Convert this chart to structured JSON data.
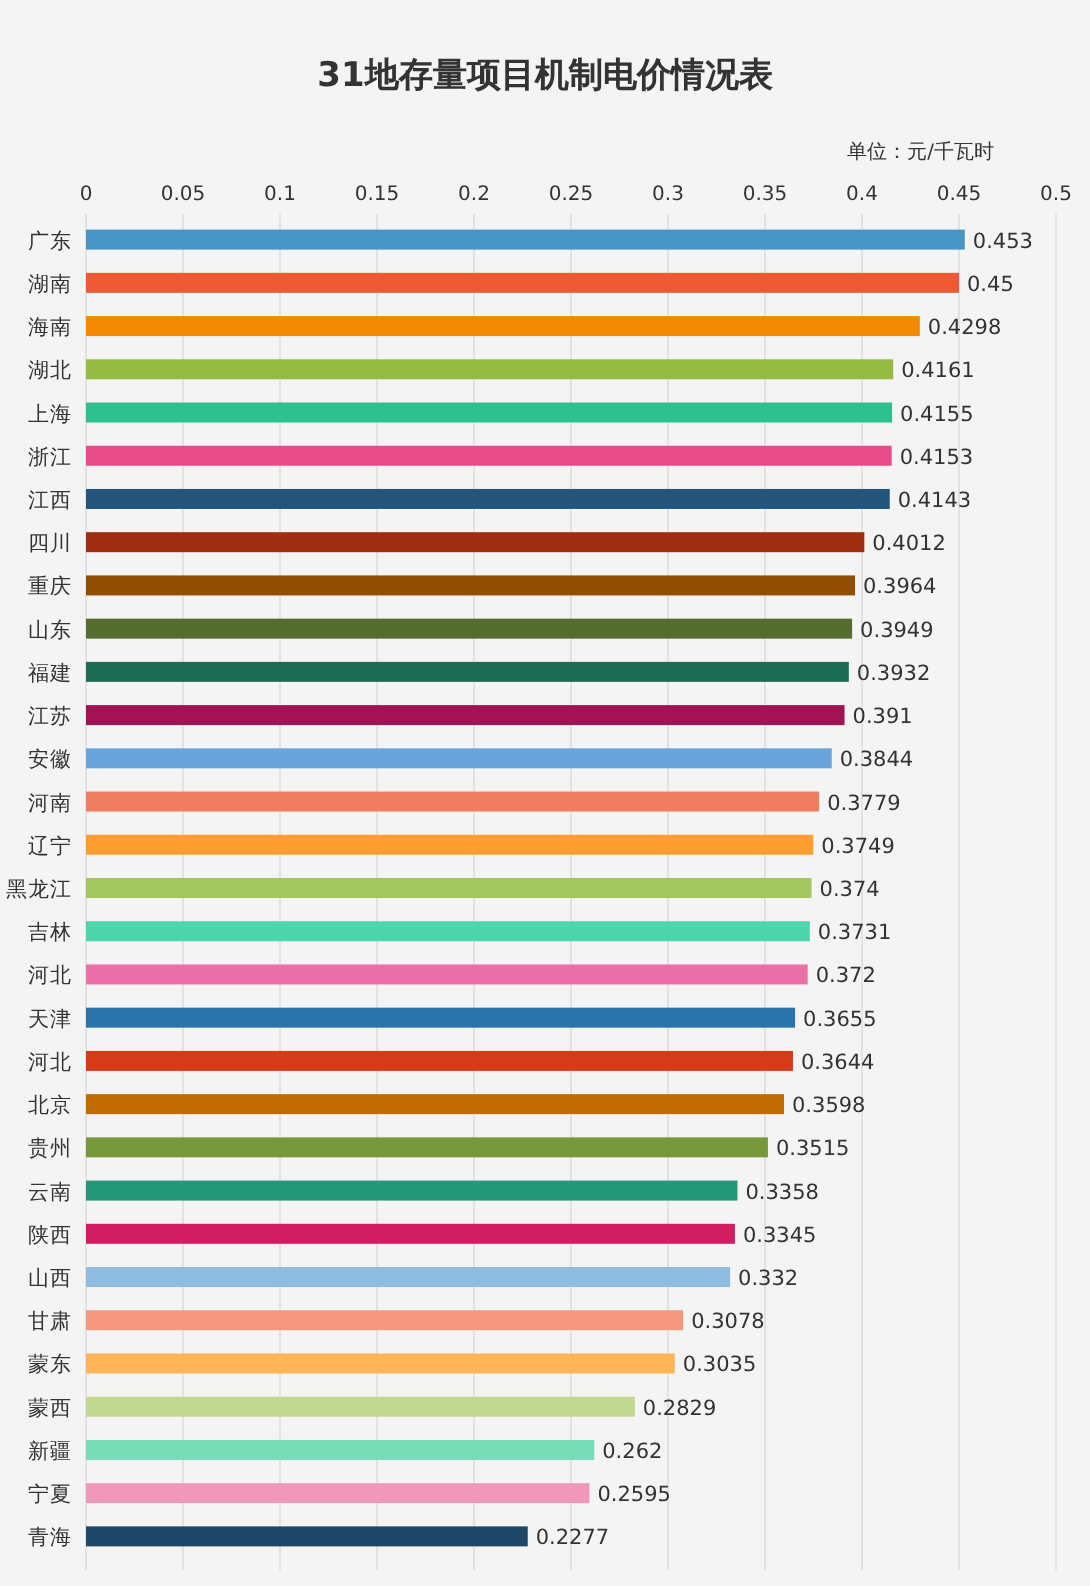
{
  "chart_data": {
    "type": "bar",
    "orientation": "horizontal",
    "title": "31地存量项目机制电价情况表",
    "annotations": [
      "单位：元/千瓦时"
    ],
    "categories": [
      "广东",
      "湖南",
      "海南",
      "湖北",
      "上海",
      "浙江",
      "江西",
      "四川",
      "重庆",
      "山东",
      "福建",
      "江苏",
      "安徽",
      "河南",
      "辽宁",
      "黑龙江",
      "吉林",
      "河北",
      "天津",
      "河北",
      "北京",
      "贵州",
      "云南",
      "陕西",
      "山西",
      "甘肃",
      "蒙东",
      "蒙西",
      "新疆",
      "宁夏",
      "青海"
    ],
    "values": [
      0.453,
      0.45,
      0.4298,
      0.4161,
      0.4155,
      0.4153,
      0.4143,
      0.4012,
      0.3964,
      0.3949,
      0.3932,
      0.391,
      0.3844,
      0.3779,
      0.3749,
      0.374,
      0.3731,
      0.372,
      0.3655,
      0.3644,
      0.3598,
      0.3515,
      0.3358,
      0.3345,
      0.332,
      0.3078,
      0.3035,
      0.2829,
      0.262,
      0.2595,
      0.2277
    ],
    "colors": [
      "#4795c6",
      "#ee5a33",
      "#f28a04",
      "#94bc42",
      "#30c090",
      "#e74c88",
      "#23557c",
      "#9e2d11",
      "#914d00",
      "#556d2e",
      "#1d6d55",
      "#a01454",
      "#69a5dc",
      "#f07d60",
      "#ff9e30",
      "#a4c660",
      "#50d4ac",
      "#ec70a8",
      "#2974a8",
      "#d43c18",
      "#c06c00",
      "#769838",
      "#229878",
      "#d01e60",
      "#90bce0",
      "#f69880",
      "#ffb458",
      "#c0d890",
      "#78dcb8",
      "#f098ba",
      "#1e4768"
    ],
    "xlim": [
      0,
      0.5
    ],
    "xticks": [
      0,
      0.05,
      0.1,
      0.15,
      0.2,
      0.25,
      0.3,
      0.35,
      0.4,
      0.45,
      0.5
    ],
    "grid": "x",
    "data_labels": true
  }
}
